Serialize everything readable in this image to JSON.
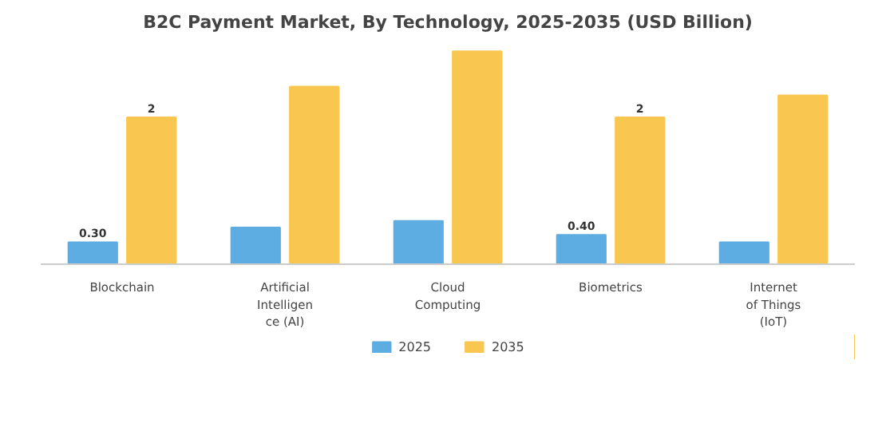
{
  "chart_data": {
    "type": "bar",
    "title": "B2C Payment Market, By Technology, 2025-2035 (USD Billion)",
    "categories": [
      "Blockchain",
      "Artificial\nIntelligen\nce (AI)",
      "Cloud\nComputing",
      "Biometrics",
      "Internet\nof Things\n(IoT)"
    ],
    "series": [
      {
        "name": "2025",
        "color": "#5dade2",
        "values": [
          0.3,
          0.5,
          0.59,
          0.4,
          0.3
        ],
        "value_labels": [
          "0.30",
          null,
          null,
          "0.40",
          null
        ]
      },
      {
        "name": "2035",
        "color": "#f9c74f",
        "values": [
          2,
          2.42,
          2.9,
          2,
          2.3
        ],
        "value_labels": [
          "2",
          null,
          null,
          "2",
          null
        ]
      }
    ],
    "legend": "bottom"
  }
}
